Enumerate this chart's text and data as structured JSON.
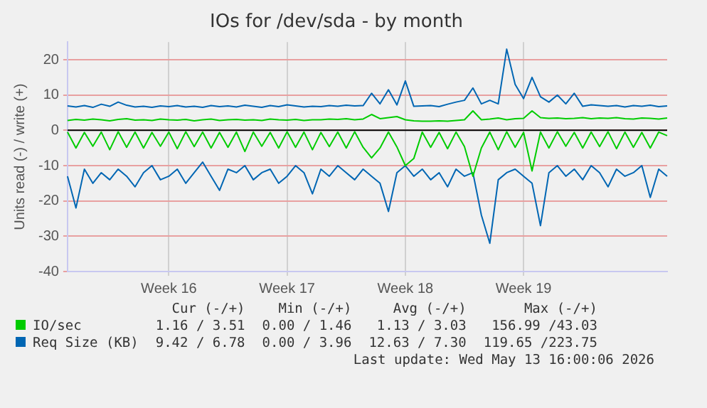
{
  "chart_data": {
    "type": "line",
    "title": "IOs for /dev/sda - by month",
    "ylabel": "Units read (-) / write (+)",
    "categories": [
      null,
      null,
      null,
      null,
      null,
      null,
      null,
      null,
      null,
      null,
      null,
      null,
      "Week 16",
      null,
      null,
      null,
      null,
      null,
      null,
      null,
      null,
      null,
      null,
      null,
      null,
      null,
      "Week 17",
      null,
      null,
      null,
      null,
      null,
      null,
      null,
      null,
      null,
      null,
      null,
      null,
      null,
      "Week 18",
      null,
      null,
      null,
      null,
      null,
      null,
      null,
      null,
      null,
      null,
      null,
      null,
      null,
      "Week 19",
      null,
      null,
      null,
      null,
      null,
      null,
      null,
      null,
      null,
      null,
      null,
      null,
      null,
      null,
      null,
      null,
      null
    ],
    "ylim": [
      -40,
      25
    ],
    "yticks": [
      -40,
      -30,
      -20,
      -10,
      0,
      10,
      20
    ],
    "series": [
      {
        "name": "IO/sec",
        "color": "#00cc00",
        "values": [
          2.8,
          3.1,
          2.9,
          3.2,
          3.0,
          2.7,
          3.1,
          3.3,
          2.9,
          3.0,
          2.8,
          3.2,
          3.0,
          2.9,
          3.1,
          2.7,
          3.0,
          3.2,
          2.8,
          3.0,
          3.1,
          2.9,
          3.0,
          2.8,
          3.2,
          3.0,
          2.9,
          3.1,
          2.8,
          3.0,
          3.0,
          3.2,
          3.1,
          3.3,
          3.0,
          3.2,
          4.5,
          3.3,
          3.6,
          3.9,
          3.0,
          2.7,
          2.6,
          2.6,
          2.7,
          2.6,
          2.8,
          3.0,
          5.5,
          3.0,
          3.2,
          3.5,
          3.0,
          3.3,
          3.4,
          5.5,
          3.6,
          3.4,
          3.5,
          3.3,
          3.4,
          3.6,
          3.3,
          3.5,
          3.4,
          3.6,
          3.3,
          3.2,
          3.5,
          3.4,
          3.2,
          3.5
        ]
      },
      {
        "color": "#00cc00",
        "values": [
          -0.5,
          -5,
          -0.6,
          -4.5,
          -0.5,
          -5.5,
          -0.4,
          -4.8,
          -0.5,
          -5,
          -0.6,
          -4.5,
          -0.5,
          -5.2,
          -0.4,
          -4.6,
          -0.5,
          -5,
          -0.6,
          -4.8,
          -0.5,
          -6,
          -0.5,
          -4.5,
          -0.6,
          -5,
          -0.4,
          -4.8,
          -0.5,
          -5.5,
          -0.6,
          -4.6,
          -0.5,
          -5,
          -0.4,
          -4.8,
          -7.8,
          -5,
          -0.5,
          -4.7,
          -10,
          -8,
          -0.5,
          -4.8,
          -0.6,
          -5.2,
          -0.5,
          -4.6,
          -13,
          -5,
          -0.5,
          -5.5,
          -0.4,
          -4.8,
          -0.6,
          -11.5,
          -0.5,
          -5,
          -0.4,
          -4.5,
          -0.6,
          -5,
          -0.5,
          -4.6,
          -0.4,
          -5.2,
          -0.5,
          -4.8,
          -0.6,
          -5,
          -0.5,
          -1.5
        ]
      },
      {
        "name": "Req Size (KB)",
        "color": "#0066b3",
        "values": [
          6.9,
          6.6,
          7.0,
          6.5,
          7.4,
          6.8,
          8.0,
          7.1,
          6.6,
          6.8,
          6.5,
          6.9,
          6.7,
          7.0,
          6.6,
          6.8,
          6.5,
          7.0,
          6.7,
          6.9,
          6.6,
          7.1,
          6.8,
          6.5,
          7.0,
          6.7,
          7.2,
          6.9,
          6.6,
          6.8,
          6.7,
          7.0,
          6.8,
          7.1,
          6.9,
          7.0,
          10.5,
          7.5,
          11.5,
          7.2,
          14,
          6.8,
          6.9,
          7.0,
          6.7,
          7.4,
          8.0,
          8.5,
          12,
          7.5,
          8.5,
          7.5,
          23,
          13,
          9.0,
          15,
          9.5,
          8.0,
          10,
          7.5,
          10.5,
          6.8,
          7.2,
          7.0,
          6.8,
          7.0,
          6.6,
          7.0,
          6.8,
          7.1,
          6.7,
          6.9
        ]
      },
      {
        "color": "#0066b3",
        "values": [
          -13,
          -22,
          -11,
          -15,
          -12,
          -14,
          -11,
          -13,
          -16,
          -12,
          -10,
          -14,
          -13,
          -11,
          -15,
          -12,
          -9,
          -13,
          -17,
          -11,
          -12,
          -10,
          -14,
          -12,
          -11,
          -15,
          -13,
          -10,
          -12,
          -18,
          -11,
          -13,
          -10,
          -12,
          -14,
          -11,
          -13,
          -15,
          -23,
          -12,
          -10,
          -13,
          -11,
          -14,
          -12,
          -16,
          -11,
          -13,
          -12,
          -24,
          -32,
          -14,
          -12,
          -11,
          -13,
          -15,
          -27,
          -12,
          -10,
          -13,
          -11,
          -14,
          -10,
          -12,
          -16,
          -11,
          -13,
          -12,
          -10,
          -19,
          -11,
          -13
        ]
      }
    ],
    "ref_lines": [
      {
        "axis": "y",
        "value": 0,
        "color": "#000000"
      }
    ],
    "grid": true,
    "legend": "bottom",
    "marker": "none",
    "line_style": "solid",
    "annotations": [
      "Cur (-/+)",
      "Min (-/+)",
      "Avg (-/+)",
      "Max (-/+)",
      "1.16 / 3.51",
      "0.00 / 1.46",
      "1.13 / 3.03",
      "156.99 /43.03",
      "9.42 / 6.78",
      "0.00 / 3.96",
      "12.63 / 7.30",
      "119.65 /223.75",
      "Last update: Wed May 13 16:00:06 2026"
    ]
  }
}
